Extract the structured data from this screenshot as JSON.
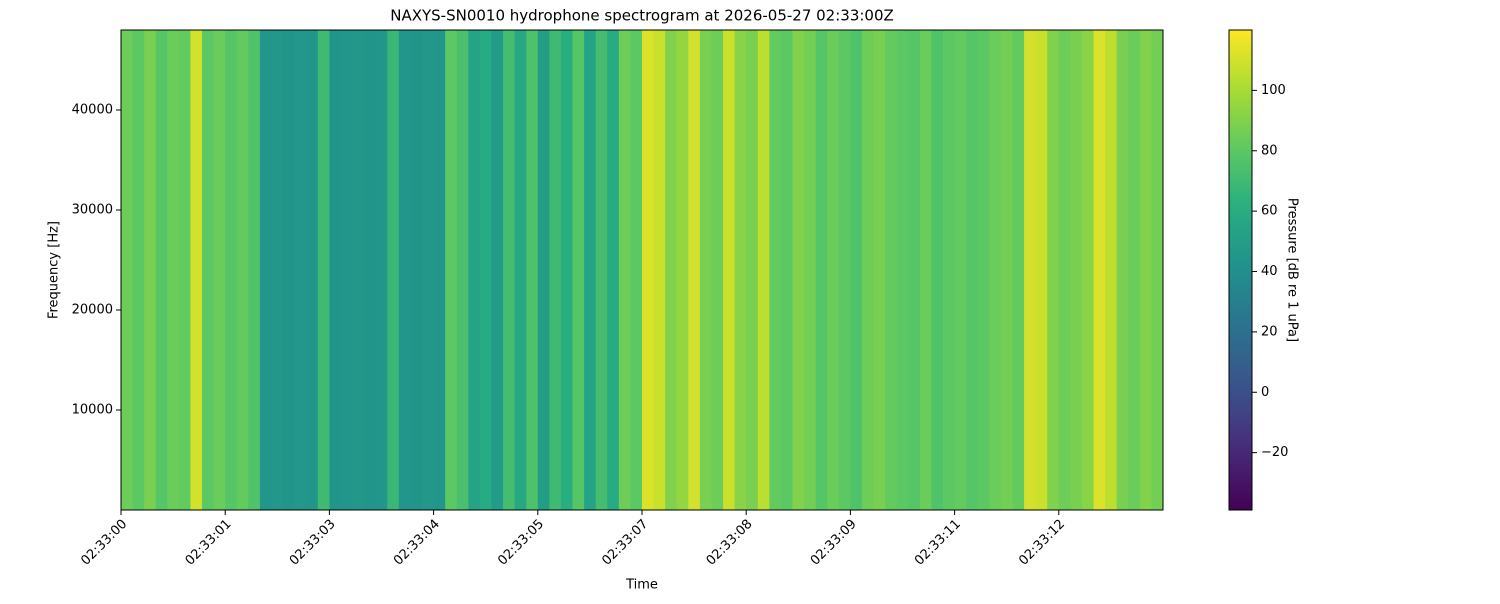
{
  "chart_data": {
    "type": "spectrogram",
    "title": "NAXYS-SN0010 hydrophone spectrogram at 2026-05-27 02:33:00Z",
    "x_label": "Time",
    "y_label": "Frequency [Hz]",
    "colorbar_label": "Pressure [dB re 1 uPa]",
    "colormap": "viridis",
    "xlim": [
      0,
      13.5
    ],
    "xticks": [
      {
        "value": 0,
        "label": "02:33:00"
      },
      {
        "value": 1.35,
        "label": "02:33:01"
      },
      {
        "value": 2.7,
        "label": "02:33:03"
      },
      {
        "value": 4.05,
        "label": "02:33:04"
      },
      {
        "value": 5.4,
        "label": "02:33:05"
      },
      {
        "value": 6.75,
        "label": "02:33:07"
      },
      {
        "value": 8.1,
        "label": "02:33:08"
      },
      {
        "value": 9.45,
        "label": "02:33:09"
      },
      {
        "value": 10.8,
        "label": "02:33:11"
      },
      {
        "value": 12.15,
        "label": "02:33:12"
      }
    ],
    "ylim": [
      0,
      48000
    ],
    "yticks": [
      10000,
      20000,
      30000,
      40000
    ],
    "clim": [
      -39,
      120
    ],
    "cticks": [
      {
        "value": -20,
        "label": "−20"
      },
      0,
      20,
      40,
      60,
      80,
      100
    ],
    "x": [
      0,
      0.15,
      0.3,
      0.45,
      0.6,
      0.75,
      0.9,
      1.05,
      1.2,
      1.35,
      1.5,
      1.65,
      1.8,
      1.95,
      2.1,
      2.25,
      2.4,
      2.55,
      2.7,
      2.85,
      3,
      3.15,
      3.3,
      3.45,
      3.6,
      3.75,
      3.9,
      4.05,
      4.2,
      4.35,
      4.5,
      4.65,
      4.8,
      4.95,
      5.1,
      5.25,
      5.4,
      5.55,
      5.7,
      5.85,
      6,
      6.15,
      6.3,
      6.45,
      6.6,
      6.75,
      6.9,
      7.05,
      7.2,
      7.35,
      7.5,
      7.65,
      7.8,
      7.95,
      8.1,
      8.25,
      8.4,
      8.55,
      8.7,
      8.85,
      9,
      9.15,
      9.3,
      9.45,
      9.6,
      9.75,
      9.9,
      10.05,
      10.2,
      10.35,
      10.5,
      10.65,
      10.8,
      10.95,
      11.1,
      11.25,
      11.4,
      11.55,
      11.7,
      11.85,
      12,
      12.15,
      12.3,
      12.45,
      12.6,
      12.75,
      12.9,
      13.05,
      13.2,
      13.35
    ],
    "values": [
      85,
      80,
      88,
      78,
      84,
      82,
      110,
      80,
      84,
      78,
      82,
      76,
      45,
      46,
      44,
      46,
      45,
      70,
      44,
      45,
      46,
      44,
      45,
      68,
      45,
      44,
      46,
      45,
      80,
      74,
      55,
      60,
      48,
      72,
      58,
      75,
      50,
      70,
      62,
      78,
      55,
      72,
      60,
      85,
      80,
      112,
      108,
      90,
      95,
      110,
      88,
      85,
      108,
      92,
      88,
      105,
      82,
      80,
      90,
      86,
      78,
      84,
      80,
      76,
      85,
      88,
      82,
      80,
      78,
      84,
      76,
      80,
      82,
      78,
      80,
      84,
      86,
      82,
      110,
      108,
      90,
      85,
      88,
      92,
      112,
      105,
      88,
      84,
      90,
      86
    ]
  }
}
